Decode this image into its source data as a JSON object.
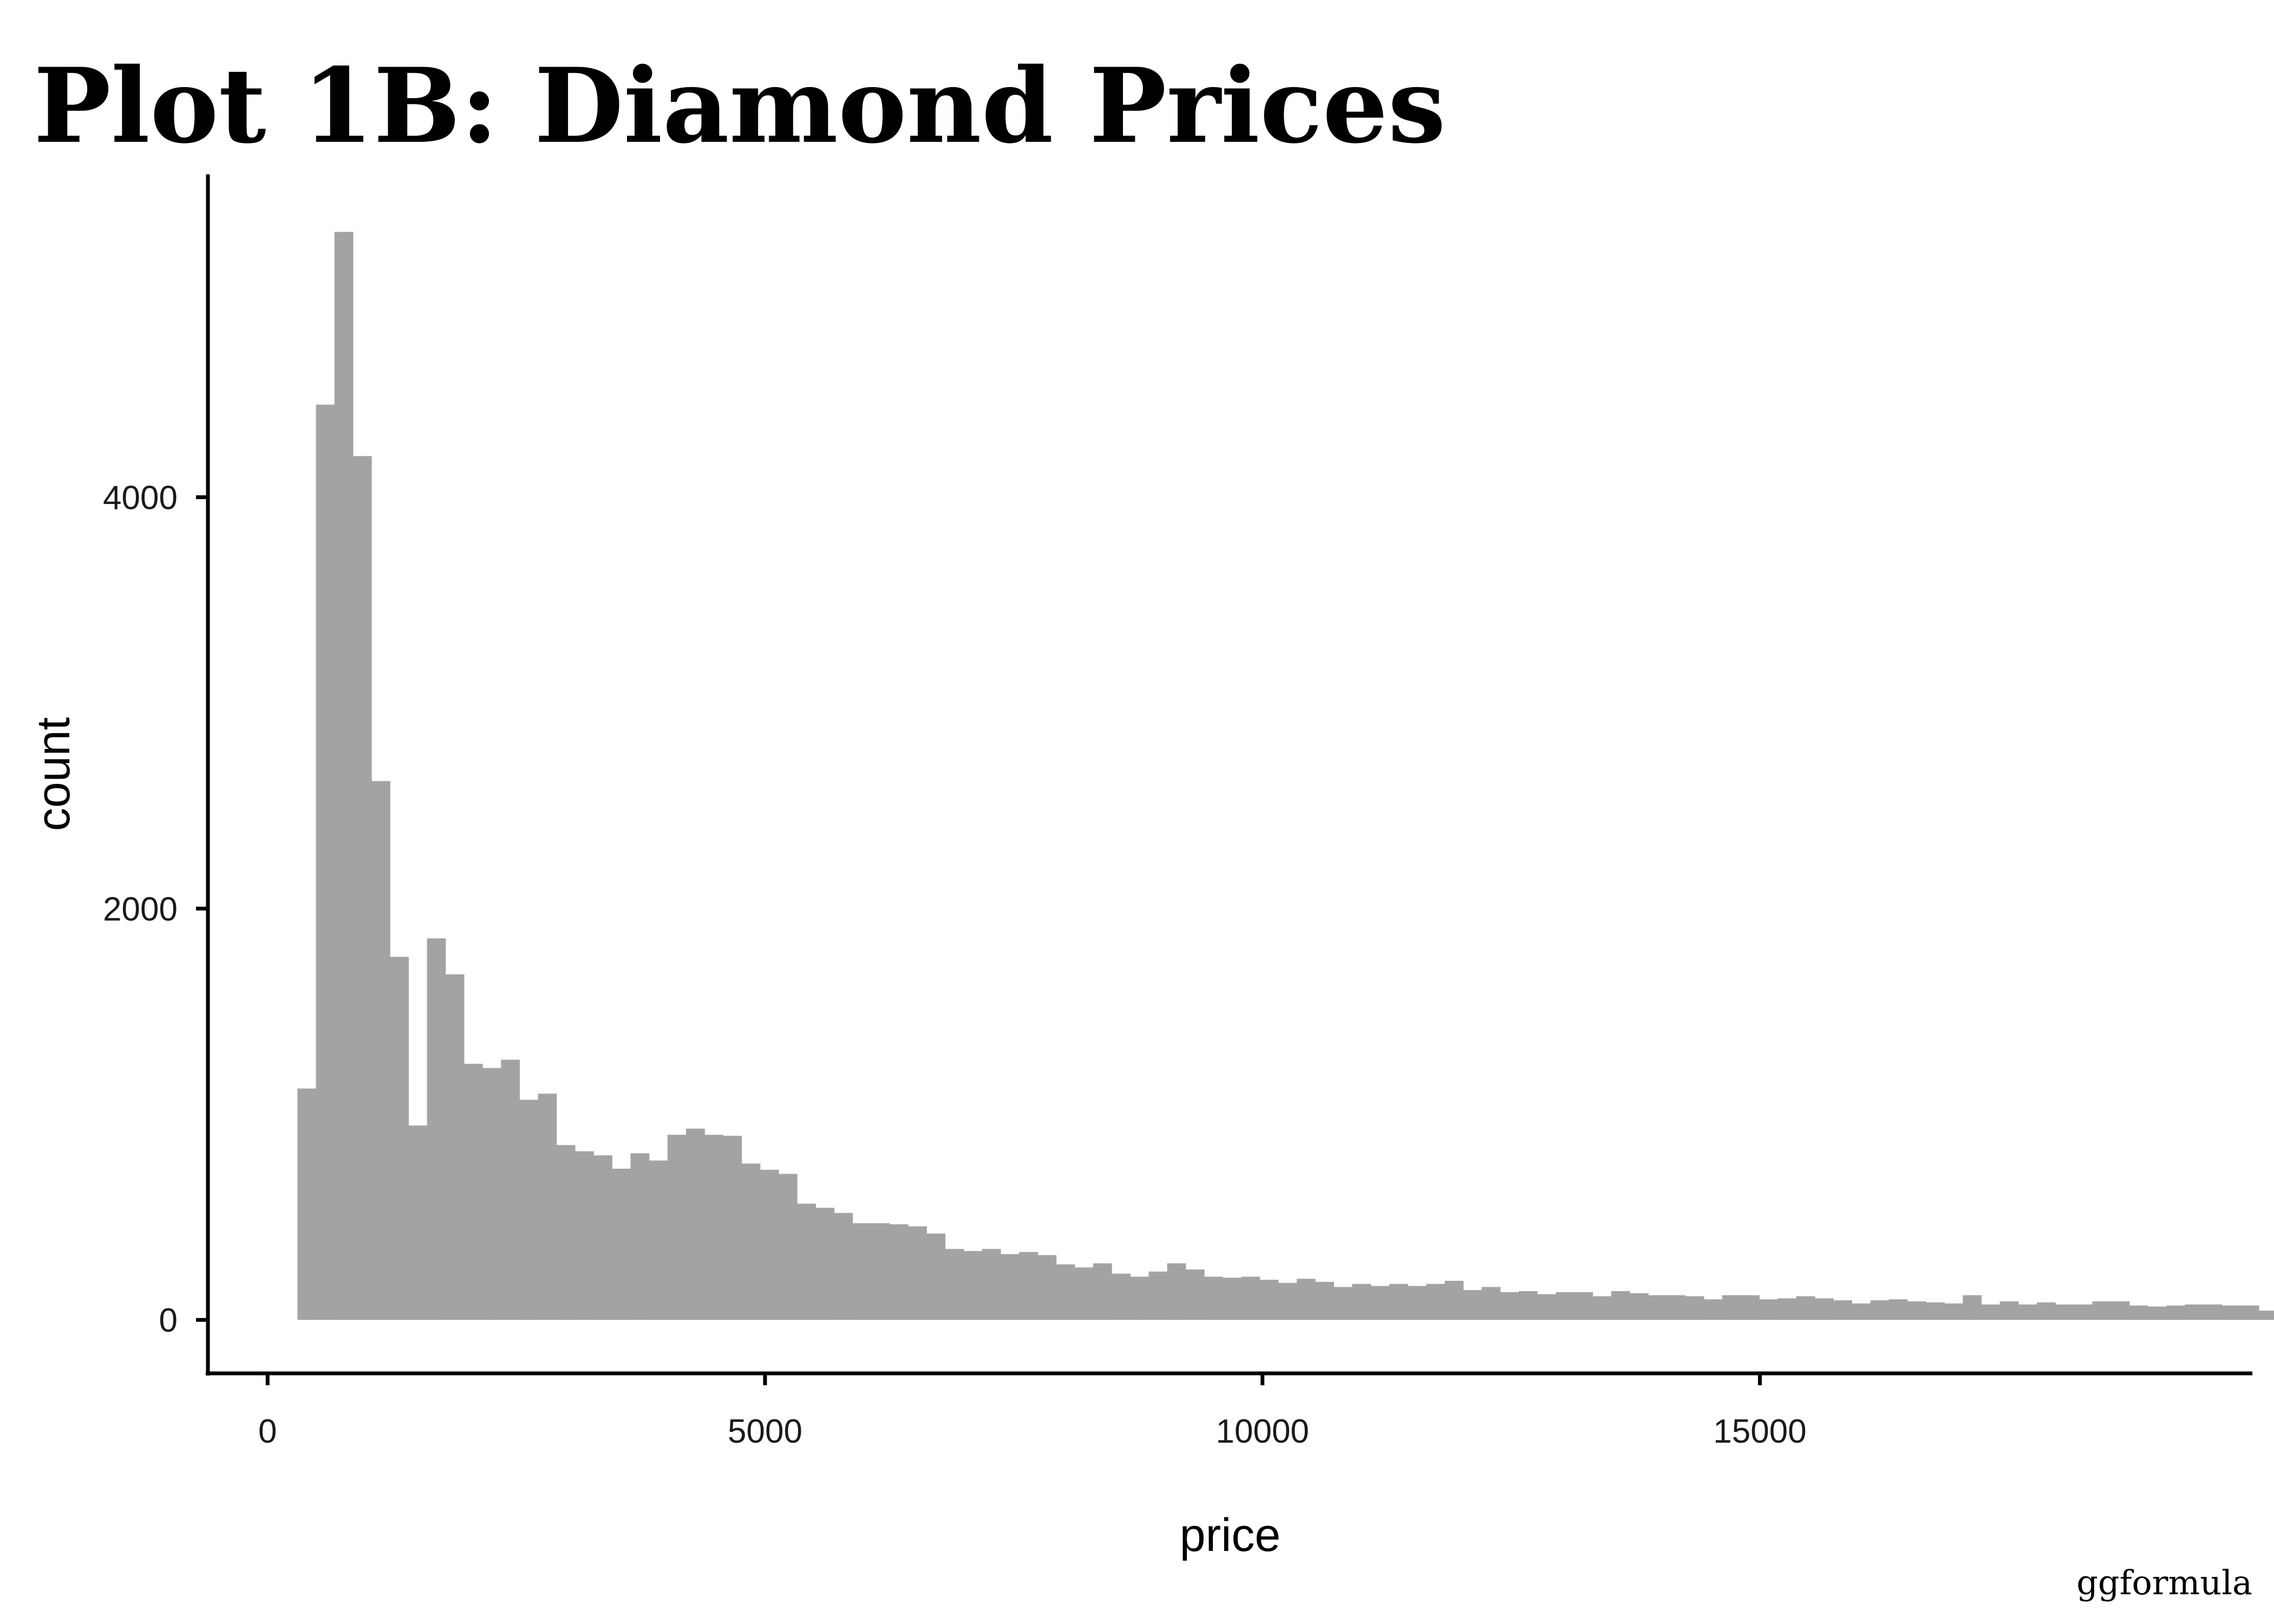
{
  "title": "Plot 1B: Diamond Prices",
  "caption": "ggformula",
  "chart_data": {
    "type": "bar",
    "title": "Plot 1B: Diamond Prices",
    "xlabel": "price",
    "ylabel": "count",
    "xlim": [
      -600,
      19950
    ],
    "ylim": [
      -260,
      5570
    ],
    "x_ticks": [
      0,
      5000,
      10000,
      15000
    ],
    "y_ticks": [
      0,
      2000,
      4000
    ],
    "bin_start": 300,
    "bin_width": 186,
    "counts": [
      1125,
      4450,
      5290,
      4200,
      2620,
      1765,
      945,
      1855,
      1680,
      1245,
      1225,
      1265,
      1070,
      1100,
      850,
      820,
      800,
      735,
      810,
      775,
      900,
      930,
      900,
      895,
      760,
      730,
      710,
      565,
      545,
      520,
      470,
      470,
      465,
      455,
      420,
      345,
      335,
      345,
      320,
      330,
      315,
      270,
      255,
      275,
      225,
      210,
      235,
      275,
      245,
      210,
      205,
      210,
      195,
      180,
      200,
      185,
      160,
      175,
      165,
      175,
      165,
      175,
      190,
      145,
      160,
      135,
      140,
      125,
      135,
      135,
      115,
      140,
      130,
      120,
      120,
      115,
      100,
      120,
      120,
      100,
      105,
      115,
      105,
      95,
      80,
      95,
      100,
      90,
      85,
      80,
      120,
      75,
      90,
      75,
      85,
      75,
      75,
      90,
      90,
      70,
      65,
      70,
      75,
      75,
      70,
      70,
      45,
      15
    ],
    "bar_color": "#a3a3a3",
    "grid": false,
    "legend": "none"
  }
}
